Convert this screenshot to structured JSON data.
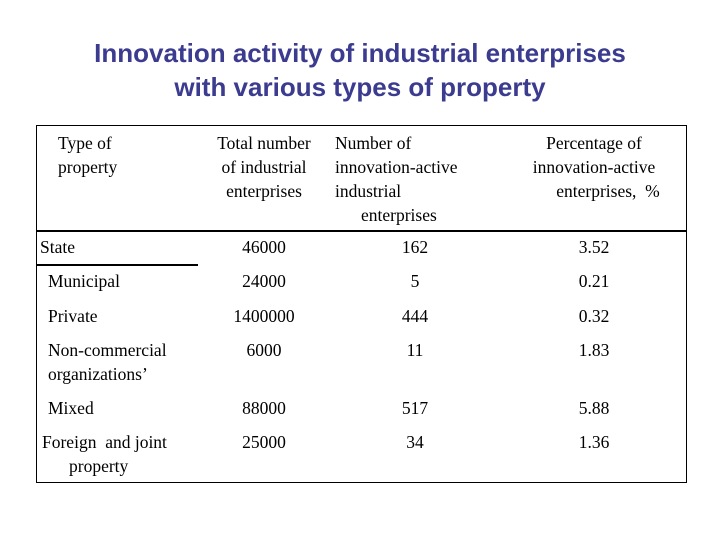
{
  "title": {
    "lines": [
      "Innovation activity of industrial enterprises",
      "with various types of property"
    ]
  },
  "table": {
    "header": [
      [
        "Type of",
        "property"
      ],
      [
        "Total number",
        "of industrial",
        "enterprises"
      ],
      [
        "Number of",
        "innovation-active",
        "industrial",
        "enterprises"
      ],
      [
        "Percentage of",
        "innovation-active",
        "enterprises,  %"
      ]
    ],
    "rows": [
      [
        [
          "State"
        ],
        46000,
        162,
        3.52
      ],
      [
        [
          "Municipal"
        ],
        24000,
        5,
        0.21
      ],
      [
        [
          "Private"
        ],
        1400000,
        444,
        0.32
      ],
      [
        [
          "Non-commercial",
          "organizations’"
        ],
        6000,
        11,
        1.83
      ],
      [
        [
          "Mixed"
        ],
        88000,
        517,
        5.88
      ],
      [
        [
          "Foreign  and joint",
          "property"
        ],
        25000,
        34,
        1.36
      ]
    ]
  }
}
